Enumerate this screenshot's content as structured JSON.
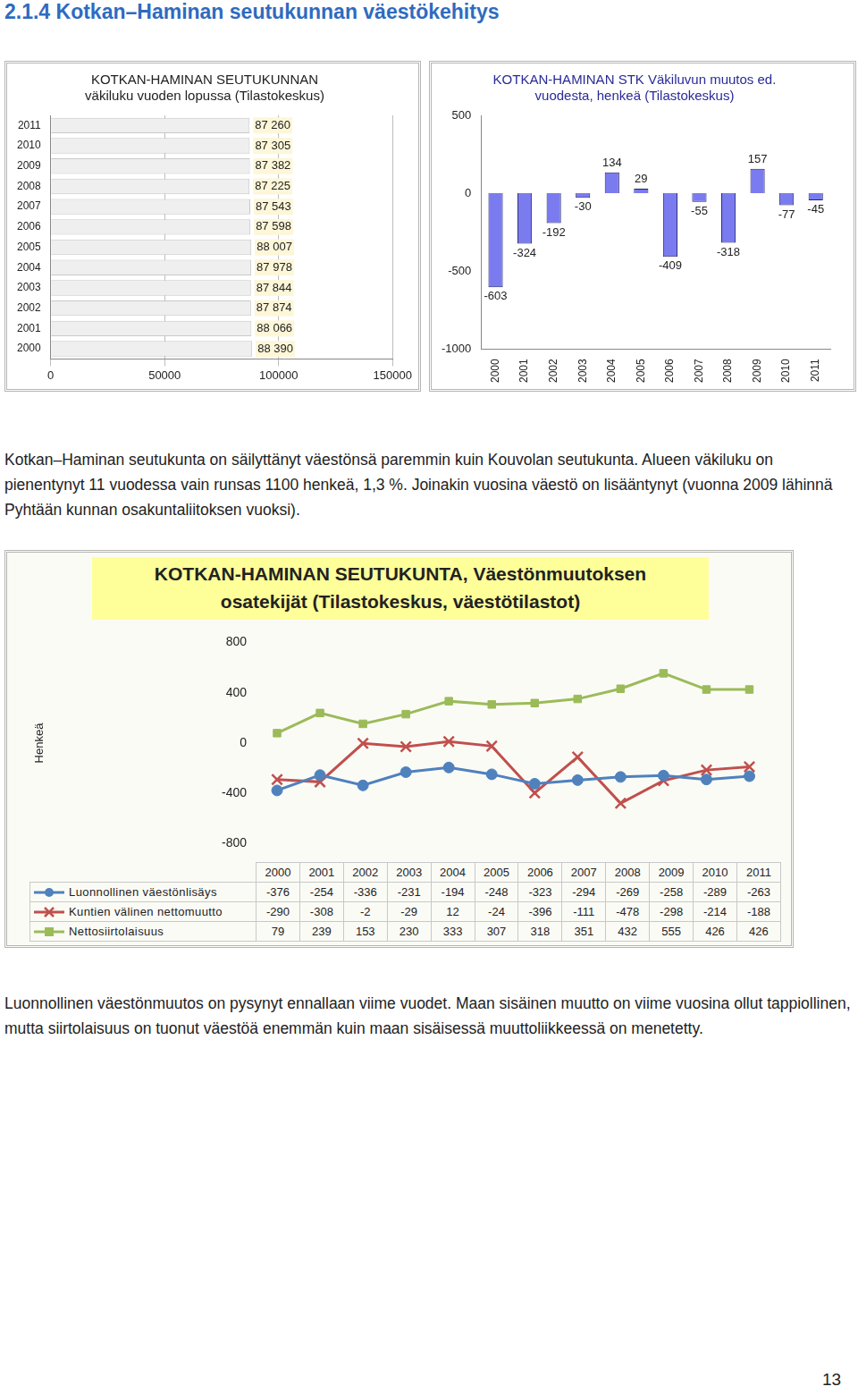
{
  "heading": "2.1.4 Kotkan–Haminan seutukunnan väestökehitys",
  "chart_data": [
    {
      "type": "bar",
      "orientation": "horizontal",
      "title": [
        "KOTKAN-HAMINAN SEUTUKUNNAN",
        "väkiluku vuoden lopussa (Tilastokeskus)"
      ],
      "categories": [
        "2011",
        "2010",
        "2009",
        "2008",
        "2007",
        "2006",
        "2005",
        "2004",
        "2003",
        "2002",
        "2001",
        "2000"
      ],
      "values": [
        87260,
        87305,
        87382,
        87225,
        87543,
        87598,
        88007,
        87978,
        87844,
        87874,
        88066,
        88390
      ],
      "value_labels": [
        "87 260",
        "87 305",
        "87 382",
        "87 225",
        "87 543",
        "87 598",
        "88 007",
        "87 978",
        "87 844",
        "87 874",
        "88 066",
        "88 390"
      ],
      "color": "#efefef",
      "xlim": [
        0,
        150000
      ],
      "xticks": [
        0,
        50000,
        100000,
        150000
      ],
      "grid": true,
      "data_labels": true
    },
    {
      "type": "bar",
      "title": [
        "KOTKAN-HAMINAN STK Väkiluvun muutos ed.",
        "vuodesta, henkeä (Tilastokeskus)"
      ],
      "categories": [
        "2000",
        "2001",
        "2002",
        "2003",
        "2004",
        "2005",
        "2006",
        "2007",
        "2008",
        "2009",
        "2010",
        "2011"
      ],
      "values": [
        -603,
        -324,
        -192,
        -30,
        134,
        29,
        -409,
        -55,
        -318,
        157,
        -77,
        -45
      ],
      "color": "#7b7bf0",
      "ylim": [
        -1000,
        500
      ],
      "yticks": [
        -1000,
        -500,
        0,
        500
      ],
      "grid": false,
      "data_labels": true
    },
    {
      "type": "line",
      "title": [
        "KOTKAN-HAMINAN SEUTUKUNTA, Väestönmuutoksen",
        "osatekijät (Tilastokeskus, väestötilastot)"
      ],
      "ylabel": "Henkeä",
      "categories": [
        "2000",
        "2001",
        "2002",
        "2003",
        "2004",
        "2005",
        "2006",
        "2007",
        "2008",
        "2009",
        "2010",
        "2011"
      ],
      "series": [
        {
          "name": "Luonnollinen väestönlisäys",
          "color": "#4f81bd",
          "marker": "circle",
          "values": [
            -376,
            -254,
            -336,
            -231,
            -194,
            -248,
            -323,
            -294,
            -269,
            -258,
            -289,
            -263
          ]
        },
        {
          "name": "Kuntien välinen nettomuutto",
          "color": "#c0504d",
          "marker": "x",
          "values": [
            -290,
            -308,
            -2,
            -29,
            12,
            -24,
            -396,
            -111,
            -478,
            -298,
            -214,
            -188
          ]
        },
        {
          "name": "Nettosiirtolaisuus",
          "color": "#9bbb59",
          "marker": "square",
          "values": [
            79,
            239,
            153,
            230,
            333,
            307,
            318,
            351,
            432,
            555,
            426,
            426
          ]
        }
      ],
      "ylim": [
        -800,
        800
      ],
      "yticks": [
        -800,
        -400,
        0,
        400,
        800
      ],
      "grid": false
    }
  ],
  "paragraphs": [
    "Kotkan–Haminan seutukunta on säilyttänyt väestönsä paremmin kuin Kouvolan seutukunta. Alueen väkiluku on pienentynyt 11 vuodessa vain runsas 1100 henkeä, 1,3 %. Joinakin vuosina väestö on lisääntynyt (vuonna 2009 lähinnä Pyhtään kunnan osakuntaliitoksen vuoksi).",
    "Luonnollinen väestönmuutos on pysynyt ennallaan viime vuodet. Maan sisäinen muutto on viime vuosina ollut tappiollinen, mutta siirtolaisuus on tuonut väestöä enemmän kuin maan sisäisessä muuttoliikkeessä on menetetty."
  ],
  "page_number": "13"
}
